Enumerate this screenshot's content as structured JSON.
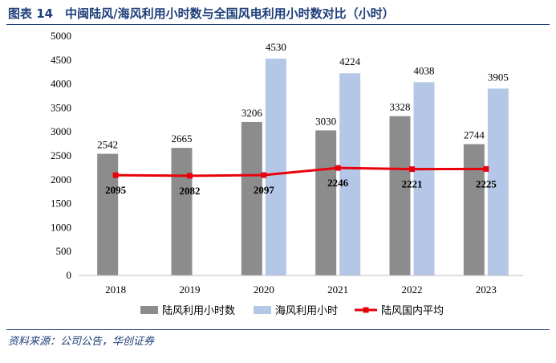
{
  "title": "图表 14　中闽陆风/海风利用小时数与全国风电利用小时数对比（小时）",
  "source": "资料来源：公司公告，华创证券",
  "colors": {
    "onshore_bar": "#8c8c8c",
    "offshore_bar": "#b4c7e7",
    "national_line": "#e8000b",
    "title": "#1f3f7a",
    "axis": "#bfbfbf"
  },
  "chart_data": {
    "type": "bar",
    "categories": [
      "2018",
      "2019",
      "2020",
      "2021",
      "2022",
      "2023"
    ],
    "ylim": [
      0,
      5000
    ],
    "yticks": [
      "0",
      "500",
      "1000",
      "1500",
      "2000",
      "2500",
      "3000",
      "3500",
      "4000",
      "4500",
      "5000"
    ],
    "grid": false,
    "legend_position": "bottom",
    "series": [
      {
        "name": "陆风利用小时数",
        "type": "bar",
        "values": [
          2542,
          2665,
          3206,
          3030,
          3328,
          2744
        ]
      },
      {
        "name": "海风利用小时",
        "type": "bar",
        "values": [
          null,
          null,
          4530,
          4224,
          4038,
          3905
        ]
      },
      {
        "name": "陆风国内平均",
        "type": "line",
        "values": [
          2095,
          2082,
          2097,
          2246,
          2221,
          2225
        ]
      }
    ]
  }
}
